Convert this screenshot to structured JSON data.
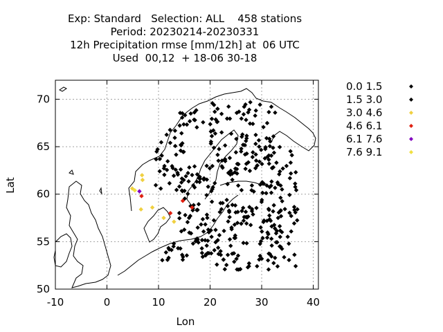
{
  "title": {
    "line1": "Exp: Standard   Selection: ALL    458 stations",
    "line2": "Period: 20230214-20230331",
    "line3": "12h Precipitation rmse [mm/12h] at  06 UTC",
    "line4": "Used  00,12  + 18-06 30-18"
  },
  "chart_data": {
    "type": "scatter",
    "xlabel": "Lon",
    "ylabel": "Lat",
    "xlim": [
      -10,
      41
    ],
    "ylim": [
      50,
      72
    ],
    "x_ticks": [
      "-10",
      "0",
      "10",
      "20",
      "30",
      "40"
    ],
    "y_ticks": [
      "50",
      "55",
      "60",
      "65",
      "70"
    ],
    "grid": true,
    "legend_placement": "right",
    "legend": [
      {
        "label": "0.0 1.5",
        "color": "#000000"
      },
      {
        "label": "1.5 3.0",
        "color": "#000000"
      },
      {
        "label": "3.0 4.6",
        "color": "#f0d040"
      },
      {
        "label": "4.6 6.1",
        "color": "#e02010"
      },
      {
        "label": "6.1 7.6",
        "color": "#8000c0"
      },
      {
        "label": "7.6 9.1",
        "color": "#f0e040"
      }
    ],
    "highlight_stations": [
      {
        "lon": 5.4,
        "lat": 60.4,
        "class": 5
      },
      {
        "lon": 6.3,
        "lat": 60.3,
        "class": 4
      },
      {
        "lon": 6.8,
        "lat": 62.0,
        "class": 2
      },
      {
        "lon": 6.9,
        "lat": 61.5,
        "class": 2
      },
      {
        "lon": 4.9,
        "lat": 60.6,
        "class": 2
      },
      {
        "lon": 6.6,
        "lat": 58.4,
        "class": 2
      },
      {
        "lon": 8.8,
        "lat": 58.6,
        "class": 2
      },
      {
        "lon": 6.7,
        "lat": 59.8,
        "class": 3
      },
      {
        "lon": 12.3,
        "lat": 58.0,
        "class": 3
      },
      {
        "lon": 14.7,
        "lat": 59.3,
        "class": 3
      },
      {
        "lon": 16.5,
        "lat": 58.6,
        "class": 3
      },
      {
        "lon": 11.0,
        "lat": 57.5,
        "class": 2
      },
      {
        "lon": 13.0,
        "lat": 57.1,
        "class": 2
      }
    ]
  }
}
